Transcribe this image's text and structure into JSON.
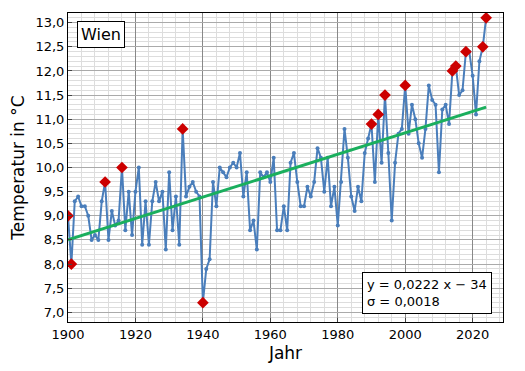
{
  "chart_data": {
    "type": "line",
    "x_label": "Jahr",
    "y_label": "Temperatur in °C",
    "annotations": [
      "Wien",
      "y = 0,0222 x − 34",
      "σ = 0,0018"
    ],
    "x": [
      1900,
      1901,
      1902,
      1903,
      1904,
      1905,
      1906,
      1907,
      1908,
      1909,
      1910,
      1911,
      1912,
      1913,
      1914,
      1915,
      1916,
      1917,
      1918,
      1919,
      1920,
      1921,
      1922,
      1923,
      1924,
      1925,
      1926,
      1927,
      1928,
      1929,
      1930,
      1931,
      1932,
      1933,
      1934,
      1935,
      1936,
      1937,
      1938,
      1939,
      1940,
      1941,
      1942,
      1943,
      1944,
      1945,
      1946,
      1947,
      1948,
      1949,
      1950,
      1951,
      1952,
      1953,
      1954,
      1955,
      1956,
      1957,
      1958,
      1959,
      1960,
      1961,
      1962,
      1963,
      1964,
      1965,
      1966,
      1967,
      1968,
      1969,
      1970,
      1971,
      1972,
      1973,
      1974,
      1975,
      1976,
      1977,
      1978,
      1979,
      1980,
      1981,
      1982,
      1983,
      1984,
      1985,
      1986,
      1987,
      1988,
      1989,
      1990,
      1991,
      1992,
      1993,
      1994,
      1995,
      1996,
      1997,
      1998,
      1999,
      2000,
      2001,
      2002,
      2003,
      2004,
      2005,
      2006,
      2007,
      2008,
      2009,
      2010,
      2011,
      2012,
      2013,
      2014,
      2015,
      2016,
      2017,
      2018,
      2019,
      2020,
      2021,
      2022,
      2023,
      2024
    ],
    "series": [
      {
        "type": "line",
        "color": "#4a7ebb",
        "marker": "circle",
        "line_style": "solid",
        "values": [
          9.0,
          8.0,
          9.3,
          9.4,
          9.2,
          9.2,
          9.0,
          8.5,
          8.6,
          8.5,
          9.3,
          9.7,
          8.5,
          9.1,
          8.8,
          8.9,
          10.0,
          8.7,
          9.5,
          8.6,
          9.5,
          10.0,
          8.4,
          9.3,
          8.4,
          9.3,
          9.7,
          9.3,
          9.5,
          8.3,
          9.9,
          8.7,
          9.4,
          8.4,
          10.8,
          9.4,
          9.6,
          9.7,
          9.5,
          9.4,
          7.2,
          7.9,
          8.1,
          9.7,
          9.2,
          10.0,
          9.9,
          9.8,
          10.0,
          10.1,
          10.0,
          10.3,
          9.4,
          9.9,
          8.7,
          8.9,
          8.3,
          9.9,
          9.8,
          9.9,
          9.7,
          10.2,
          8.7,
          8.7,
          9.2,
          8.7,
          10.1,
          10.3,
          9.7,
          9.2,
          9.2,
          9.6,
          9.4,
          9.7,
          10.4,
          10.2,
          9.5,
          10.2,
          9.2,
          9.6,
          8.8,
          9.7,
          10.8,
          10.2,
          9.4,
          9.1,
          9.6,
          9.3,
          10.3,
          10.6,
          10.9,
          9.7,
          11.1,
          10.1,
          11.5,
          10.3,
          8.9,
          10.1,
          10.7,
          10.8,
          11.7,
          10.7,
          11.3,
          11.0,
          10.5,
          10.2,
          10.8,
          11.7,
          11.4,
          11.3,
          9.9,
          11.2,
          11.3,
          10.9,
          12.0,
          12.1,
          11.5,
          11.6,
          12.4,
          12.4,
          11.9,
          11.1,
          12.2,
          12.5,
          13.1
        ]
      },
      {
        "type": "scatter",
        "color": "#cc0000",
        "marker": "diamond",
        "x": [
          1900,
          1901,
          1911,
          1916,
          1934,
          1940,
          1990,
          1992,
          1994,
          2000,
          2014,
          2015,
          2018,
          2023,
          2024
        ],
        "values": [
          9.0,
          8.0,
          9.7,
          10.0,
          10.8,
          7.2,
          10.9,
          11.1,
          11.5,
          11.7,
          12.0,
          12.1,
          12.4,
          12.5,
          13.1
        ]
      },
      {
        "type": "line",
        "color": "#1aaf5d",
        "line_style": "solid",
        "x": [
          1900,
          2024
        ],
        "values": [
          8.5,
          11.25
        ]
      }
    ],
    "xlim": [
      1900,
      2029
    ],
    "xticks": [
      1900,
      1920,
      1940,
      1960,
      1980,
      2000,
      2020
    ],
    "ylim": [
      6.8,
      13.2
    ],
    "yticks": [
      {
        "value": 7,
        "label": "7,0"
      },
      {
        "value": 7.5,
        "label": "7,5"
      },
      {
        "value": 8,
        "label": "8,0"
      },
      {
        "value": 8.5,
        "label": "8,5"
      },
      {
        "value": 9,
        "label": "9,0"
      },
      {
        "value": 9.5,
        "label": "9,5"
      },
      {
        "value": 10,
        "label": "10,0"
      },
      {
        "value": 10.5,
        "label": "10,5"
      },
      {
        "value": 11,
        "label": "11,0"
      },
      {
        "value": 11.5,
        "label": "11,5"
      },
      {
        "value": 12,
        "label": "12,0"
      },
      {
        "value": 12.5,
        "label": "12,5"
      },
      {
        "value": 13,
        "label": "13,0"
      }
    ],
    "grid": true
  }
}
